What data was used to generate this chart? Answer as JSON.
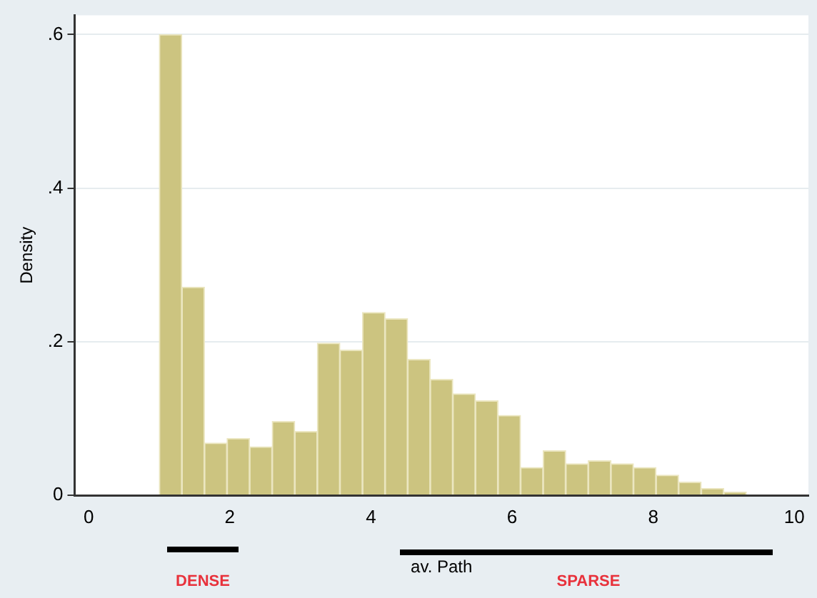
{
  "chart_data": {
    "type": "histogram",
    "xlabel": "av. Path",
    "ylabel": "Density",
    "bins": [
      1,
      1.32,
      1.64,
      1.96,
      2.28,
      2.6,
      2.92,
      3.24,
      3.56,
      3.88,
      4.2,
      4.52,
      4.84,
      5.16,
      5.48,
      5.8,
      6.12,
      6.44,
      6.76,
      7.08,
      7.4,
      7.72,
      8.04,
      8.36,
      8.68,
      9,
      9.32
    ],
    "values": [
      0.6,
      0.271,
      0.068,
      0.074,
      0.063,
      0.096,
      0.083,
      0.198,
      0.189,
      0.238,
      0.23,
      0.177,
      0.151,
      0.132,
      0.123,
      0.104,
      0.036,
      0.058,
      0.041,
      0.045,
      0.041,
      0.036,
      0.026,
      0.017,
      0.009,
      0.004
    ],
    "color": "#ccc480",
    "xlim": [
      -0.2,
      10.2
    ],
    "xticks": [
      0,
      2,
      4,
      6,
      8,
      10
    ],
    "ylim": [
      0,
      0.625
    ],
    "yticks": [
      {
        "value": 0,
        "label": "0"
      },
      {
        "value": 0.2,
        "label": ".2"
      },
      {
        "value": 0.4,
        "label": ".4"
      },
      {
        "value": 0.6,
        "label": ".6"
      }
    ],
    "grid": "y",
    "annotations": [
      "DENSE",
      "SPARSE"
    ]
  }
}
